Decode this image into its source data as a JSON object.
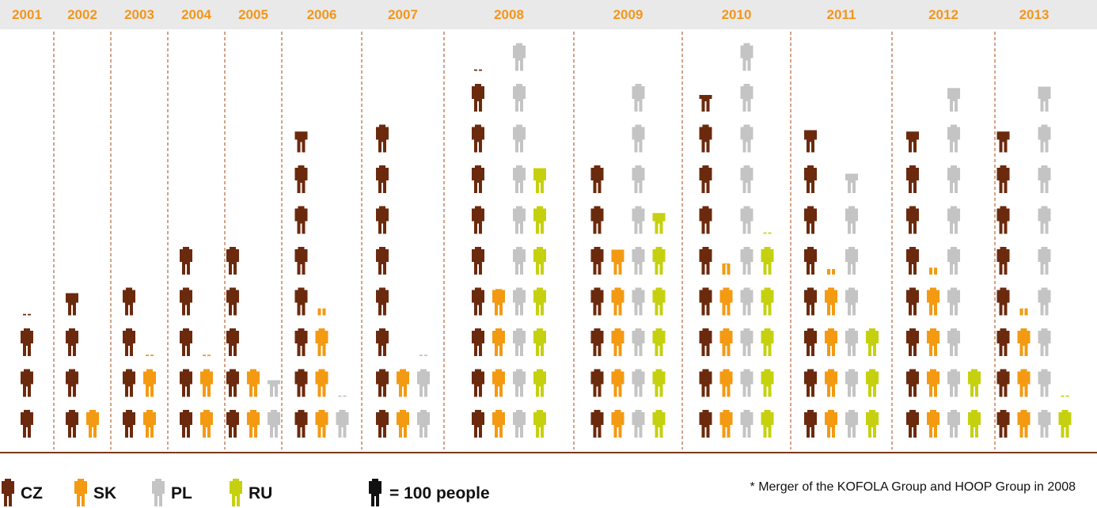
{
  "chart_data": {
    "type": "pictogram",
    "unit_label": "= 100 people",
    "footnote": "* Merger of the KOFOLA Group and HOOP Group in 2008",
    "series": [
      {
        "key": "CZ",
        "name": "CZ",
        "color": "#6b2a0d"
      },
      {
        "key": "SK",
        "name": "SK",
        "color": "#f39a12"
      },
      {
        "key": "PL",
        "name": "PL",
        "color": "#c4c4c4"
      },
      {
        "key": "RU",
        "name": "RU",
        "color": "#c5d10f"
      }
    ],
    "years": [
      {
        "year": "2001",
        "counts": {
          "CZ": 3.05
        }
      },
      {
        "year": "2002",
        "counts": {
          "CZ": 3.8,
          "SK": 1.0
        }
      },
      {
        "year": "2003",
        "counts": {
          "CZ": 4.0,
          "SK": 2.05
        }
      },
      {
        "year": "2004",
        "counts": {
          "CZ": 5.0,
          "SK": 2.05
        }
      },
      {
        "year": "2005",
        "counts": {
          "CZ": 5.0,
          "SK": 2.0,
          "PL": 1.6
        }
      },
      {
        "year": "2006",
        "counts": {
          "CZ": 7.75,
          "SK": 3.25,
          "PL": 1.05
        }
      },
      {
        "year": "2007",
        "counts": {
          "CZ": 8.0,
          "SK": 2.0,
          "PL": 2.05
        }
      },
      {
        "year": "2008",
        "counts": {
          "CZ": 9.05,
          "SK": 3.95,
          "PL": 10.0,
          "RU": 6.9
        }
      },
      {
        "year": "2009",
        "counts": {
          "CZ": 7.0,
          "SK": 4.9,
          "PL": 9.0,
          "RU": 5.75
        }
      },
      {
        "year": "2010",
        "counts": {
          "CZ": 8.6,
          "SK": 4.4,
          "PL": 10.0,
          "RU": 5.05
        }
      },
      {
        "year": "2011",
        "counts": {
          "CZ": 7.8,
          "SK": 4.2,
          "PL": 6.7,
          "RU": 3.0
        }
      },
      {
        "year": "2012",
        "counts": {
          "CZ": 7.75,
          "SK": 4.25,
          "PL": 8.85,
          "RU": 2.0
        }
      },
      {
        "year": "2013",
        "counts": {
          "CZ": 7.75,
          "SK": 3.25,
          "PL": 8.9,
          "RU": 1.05
        }
      }
    ]
  }
}
